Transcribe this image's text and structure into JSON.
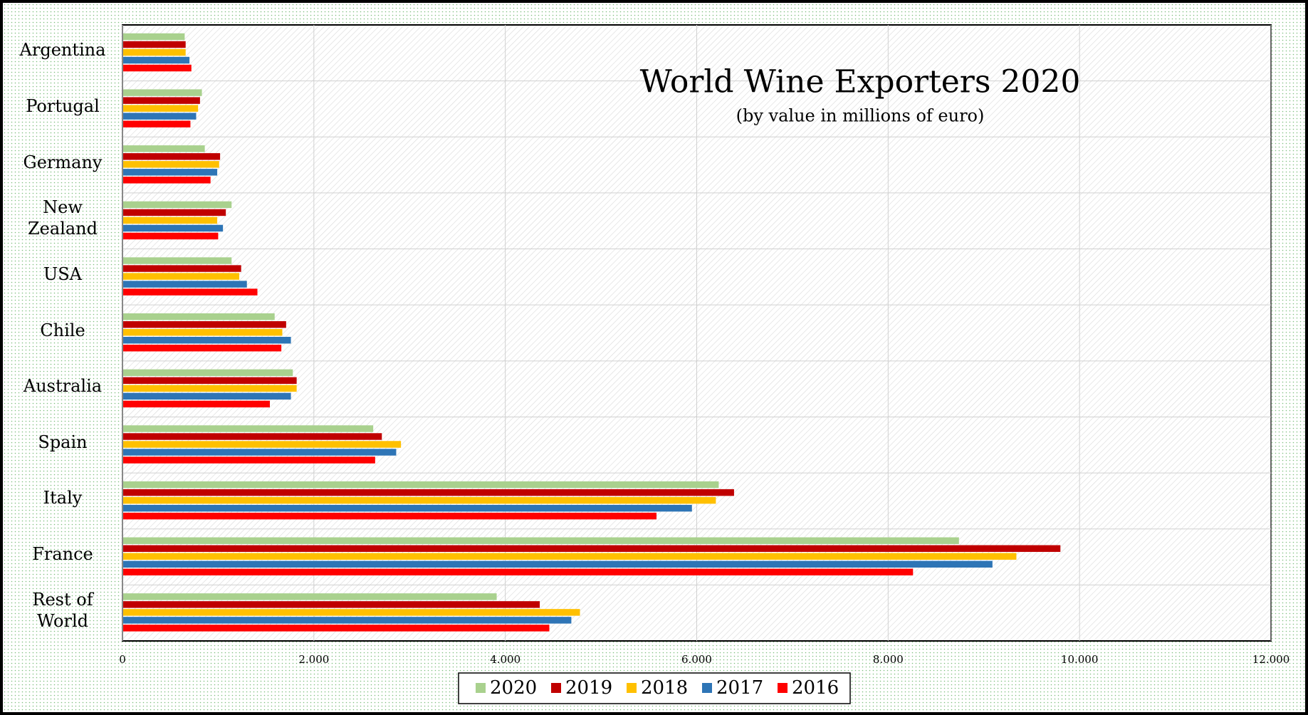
{
  "chart_data": {
    "type": "barh",
    "title": "World Wine Exporters 2020",
    "subtitle": "(by value in millions of euro)",
    "categories": [
      "Argentina",
      "Portugal",
      "Germany",
      "New Zealand",
      "USA",
      "Chile",
      "Australia",
      "Spain",
      "Italy",
      "France",
      "Rest of World"
    ],
    "series": [
      {
        "name": "2020",
        "color": "#a9d18e",
        "values": [
          650,
          830,
          860,
          1140,
          1140,
          1590,
          1780,
          2620,
          6230,
          8740,
          3910
        ]
      },
      {
        "name": "2019",
        "color": "#c00000",
        "values": [
          660,
          810,
          1020,
          1080,
          1240,
          1710,
          1820,
          2710,
          6390,
          9800,
          4360
        ]
      },
      {
        "name": "2018",
        "color": "#ffc000",
        "values": [
          660,
          790,
          1010,
          990,
          1220,
          1670,
          1820,
          2910,
          6200,
          9340,
          4780
        ]
      },
      {
        "name": "2017",
        "color": "#2e75b6",
        "values": [
          700,
          770,
          990,
          1050,
          1300,
          1760,
          1760,
          2860,
          5950,
          9090,
          4690
        ]
      },
      {
        "name": "2016",
        "color": "#ff0000",
        "values": [
          720,
          710,
          920,
          1000,
          1410,
          1660,
          1540,
          2640,
          5580,
          8260,
          4460
        ]
      }
    ],
    "xlim": [
      0,
      12000
    ],
    "xticks": [
      0,
      {
        "value": 2000,
        "label": "2.000"
      },
      {
        "value": 4000,
        "label": "4.000"
      },
      {
        "value": 6000,
        "label": "6.000"
      },
      {
        "value": 8000,
        "label": "8.000"
      },
      {
        "value": 10000,
        "label": "10.000"
      },
      {
        "value": 12000,
        "label": "12.000"
      }
    ],
    "grid": true,
    "legend": "bottom"
  }
}
